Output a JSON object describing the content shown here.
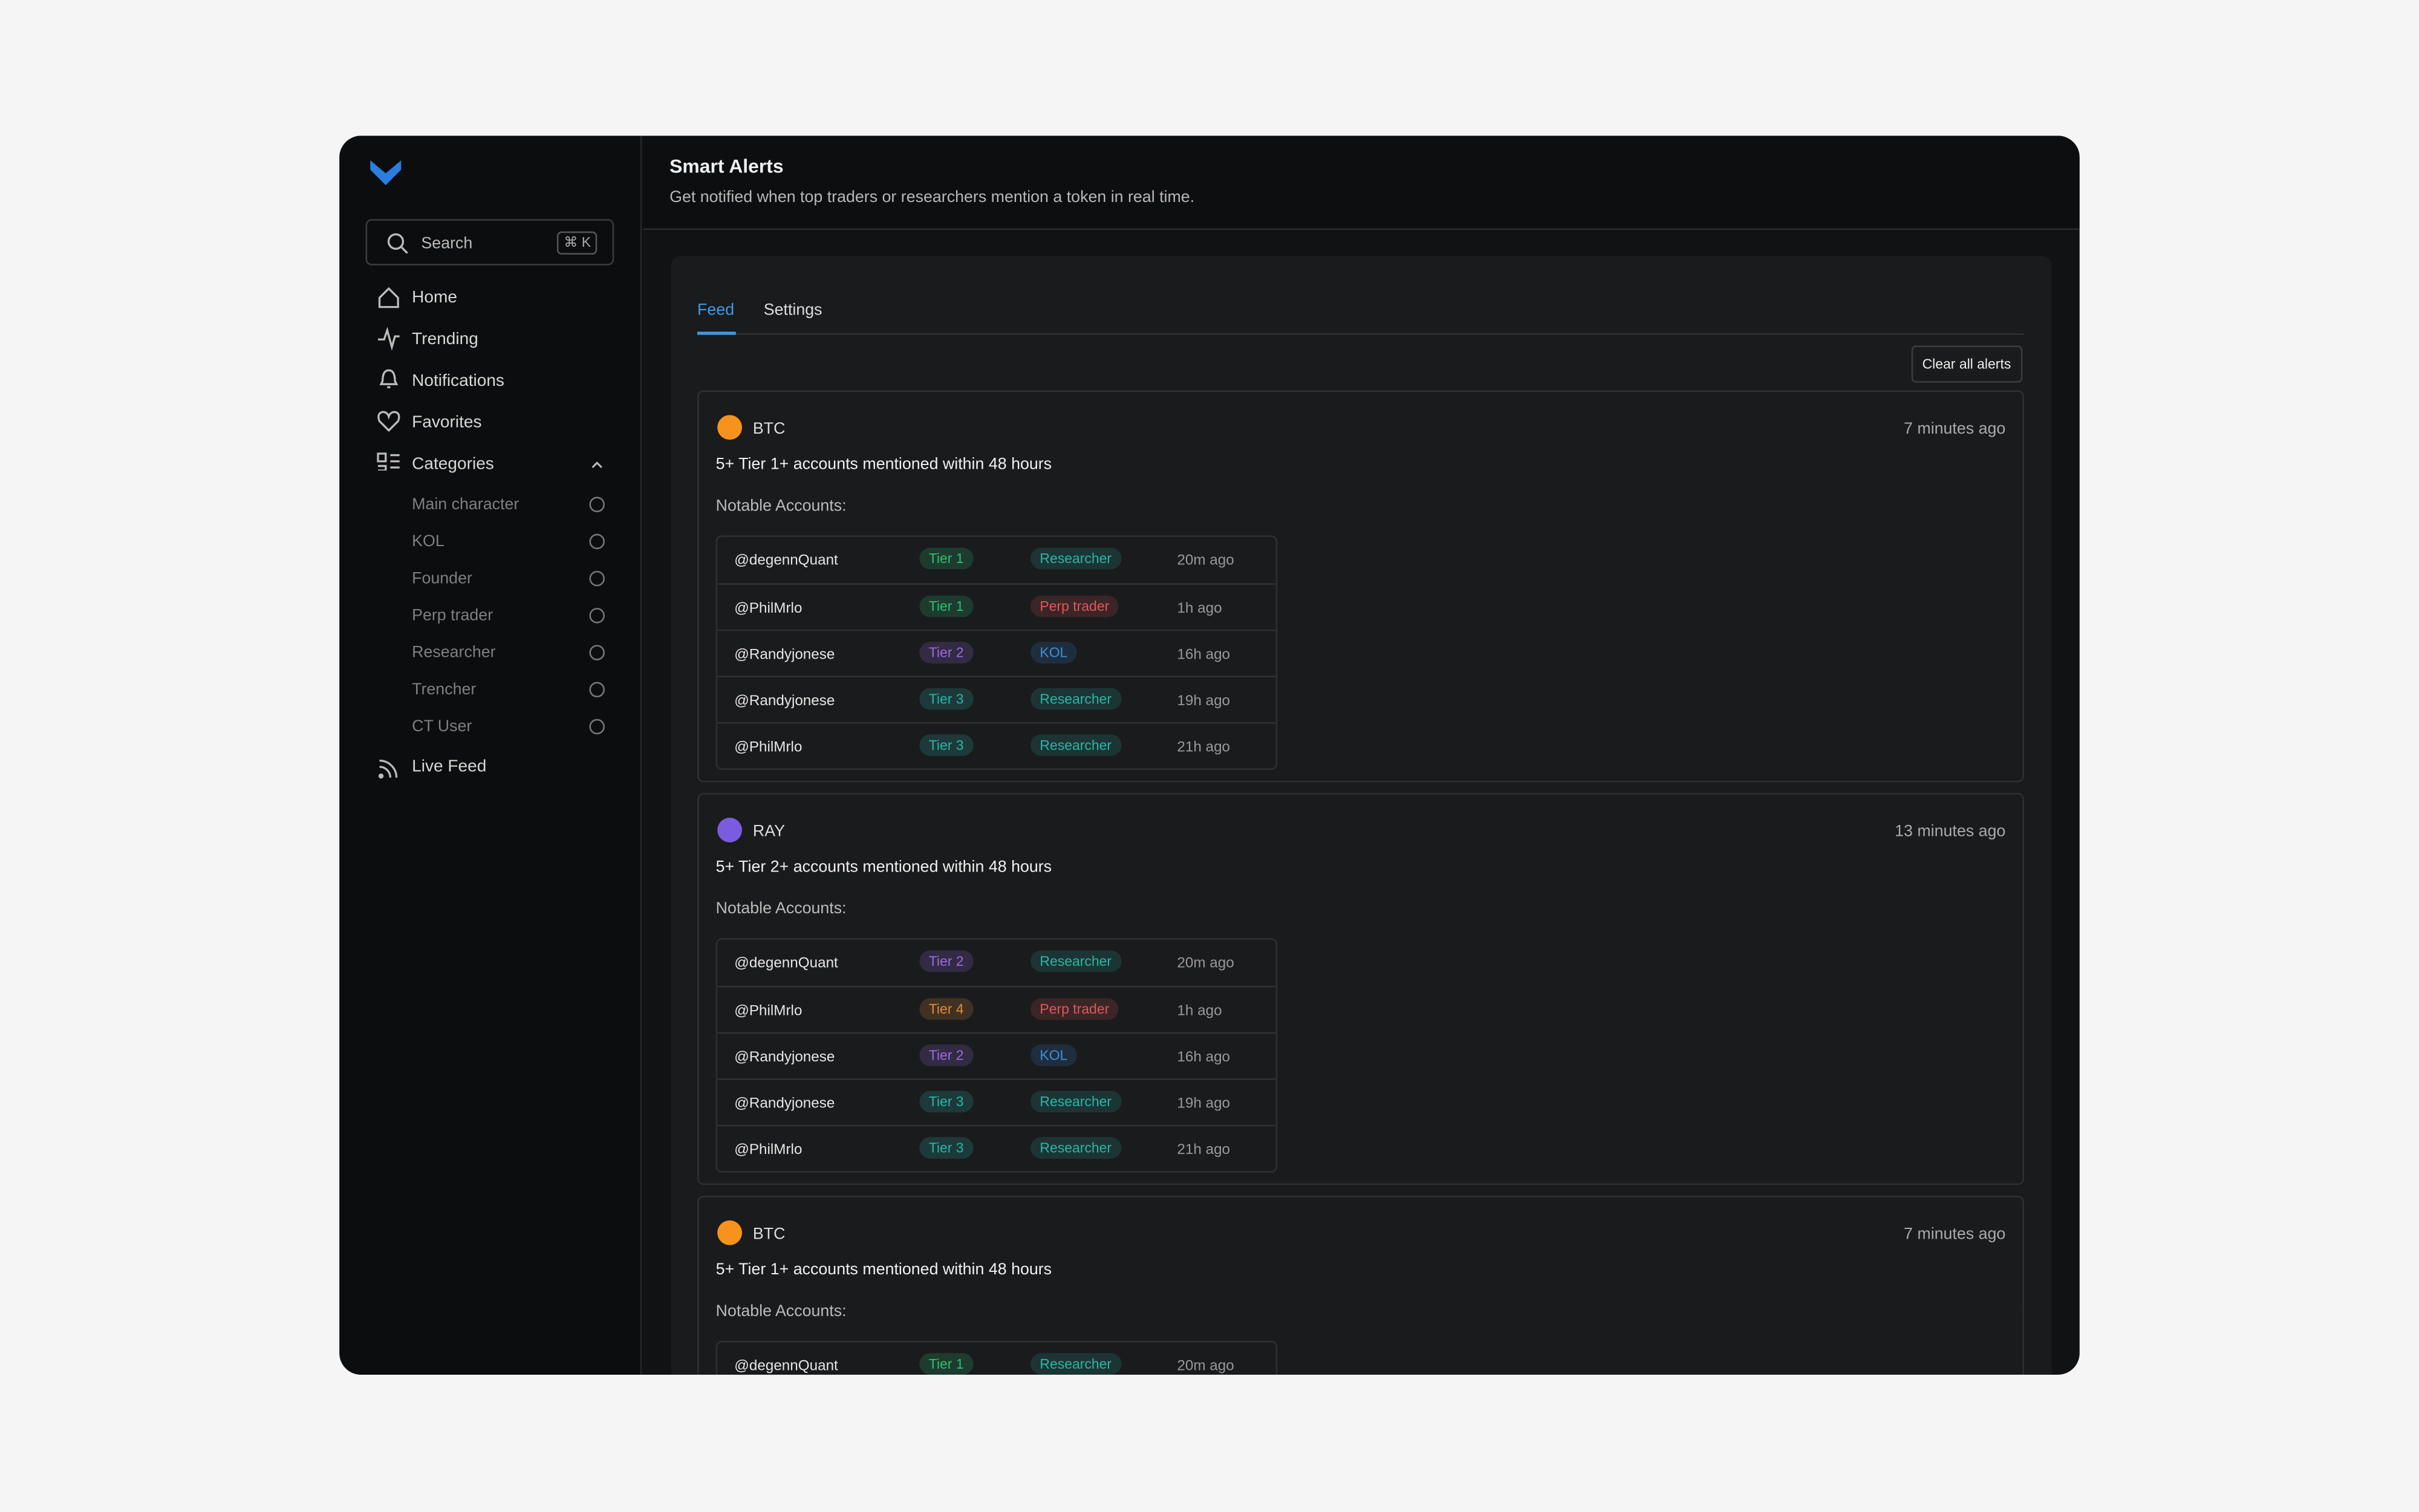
{
  "sidebar": {
    "search": {
      "placeholder": "Search",
      "shortcut": "⌘ K"
    },
    "nav": [
      "Home",
      "Trending",
      "Notifications",
      "Favorites",
      "Categories"
    ],
    "categories": [
      "Main character",
      "KOL",
      "Founder",
      "Perp trader",
      "Researcher",
      "Trencher",
      "CT User"
    ],
    "live_feed": "Live Feed"
  },
  "header": {
    "title": "Smart Alerts",
    "subtitle": "Get notified when top traders or researchers mention a token in real time."
  },
  "tabs": [
    "Feed",
    "Settings"
  ],
  "clear_button": "Clear all alerts",
  "alerts": [
    {
      "token": "BTC",
      "color": "#f7931a",
      "time": "7 minutes ago",
      "headline": "5+ Tier 1+ accounts mentioned within 48 hours",
      "notable": "Notable Accounts:",
      "accounts": [
        {
          "handle": "@degennQuant",
          "tier": "Tier 1",
          "tier_color": "#2fbf71",
          "role": "Researcher",
          "role_color": "#2bb5a8",
          "time": "20m ago"
        },
        {
          "handle": "@PhilMrlo",
          "tier": "Tier 1",
          "tier_color": "#2fbf71",
          "role": "Perp trader",
          "role_color": "#e0575b",
          "time": "1h ago"
        },
        {
          "handle": "@Randyjonese",
          "tier": "Tier 2",
          "tier_color": "#9a6be0",
          "role": "KOL",
          "role_color": "#3d8fe0",
          "time": "16h ago"
        },
        {
          "handle": "@Randyjonese",
          "tier": "Tier 3",
          "tier_color": "#2bb5a8",
          "role": "Researcher",
          "role_color": "#2bb5a8",
          "time": "19h ago"
        },
        {
          "handle": "@PhilMrlo",
          "tier": "Tier 3",
          "tier_color": "#2bb5a8",
          "role": "Researcher",
          "role_color": "#2bb5a8",
          "time": "21h ago"
        }
      ]
    },
    {
      "token": "RAY",
      "color": "#7b5be0",
      "time": "13 minutes ago",
      "headline": "5+ Tier 2+ accounts mentioned within 48 hours",
      "notable": "Notable Accounts:",
      "accounts": [
        {
          "handle": "@degennQuant",
          "tier": "Tier 2",
          "tier_color": "#9a6be0",
          "role": "Researcher",
          "role_color": "#2bb5a8",
          "time": "20m ago"
        },
        {
          "handle": "@PhilMrlo",
          "tier": "Tier 4",
          "tier_color": "#e08a3a",
          "role": "Perp trader",
          "role_color": "#e0575b",
          "time": "1h ago"
        },
        {
          "handle": "@Randyjonese",
          "tier": "Tier 2",
          "tier_color": "#9a6be0",
          "role": "KOL",
          "role_color": "#3d8fe0",
          "time": "16h ago"
        },
        {
          "handle": "@Randyjonese",
          "tier": "Tier 3",
          "tier_color": "#2bb5a8",
          "role": "Researcher",
          "role_color": "#2bb5a8",
          "time": "19h ago"
        },
        {
          "handle": "@PhilMrlo",
          "tier": "Tier 3",
          "tier_color": "#2bb5a8",
          "role": "Researcher",
          "role_color": "#2bb5a8",
          "time": "21h ago"
        }
      ]
    },
    {
      "token": "BTC",
      "color": "#f7931a",
      "time": "7 minutes ago",
      "headline": "5+ Tier 1+ accounts mentioned within 48 hours",
      "notable": "Notable Accounts:",
      "accounts": [
        {
          "handle": "@degennQuant",
          "tier": "Tier 1",
          "tier_color": "#2fbf71",
          "role": "Researcher",
          "role_color": "#2bb5a8",
          "time": "20m ago"
        }
      ]
    }
  ]
}
